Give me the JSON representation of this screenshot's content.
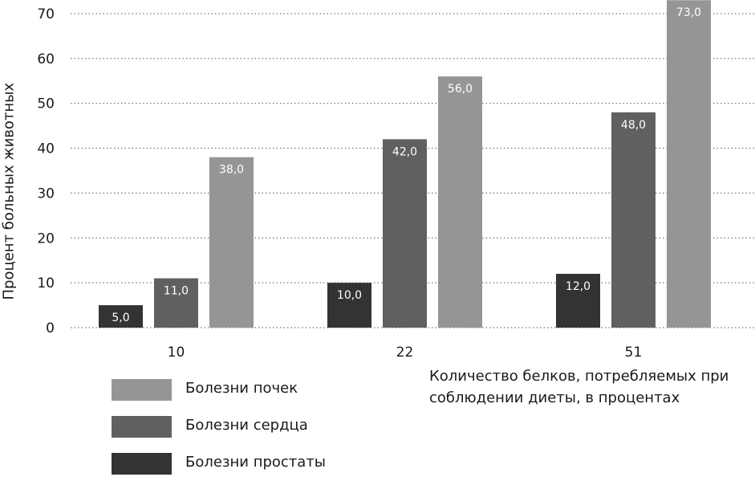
{
  "chart_data": {
    "type": "bar",
    "categories": [
      "10",
      "22",
      "51"
    ],
    "ylabel": "Процент больных животных",
    "xlabel_lines": [
      "Количество белков, потребляемых при",
      "соблюдении диеты, в процентах"
    ],
    "ylim": [
      0,
      70
    ],
    "yticks": [
      0,
      10,
      20,
      30,
      40,
      50,
      60,
      70
    ],
    "grid": "dotted horizontal",
    "series": [
      {
        "name": "Болезни простаты",
        "color": "#333333",
        "values": [
          5.0,
          10.0,
          12.0
        ],
        "labels": [
          "5,0",
          "10,0",
          "12,0"
        ]
      },
      {
        "name": "Болезни сердца",
        "color": "#606060",
        "values": [
          11.0,
          42.0,
          48.0
        ],
        "labels": [
          "11,0",
          "42,0",
          "48,0"
        ]
      },
      {
        "name": "Болезни почек",
        "color": "#959595",
        "values": [
          38.0,
          56.0,
          73.0
        ],
        "labels": [
          "38,0",
          "56,0",
          "73,0"
        ]
      }
    ],
    "legend": [
      "Болезни почек",
      "Болезни сердца",
      "Болезни простаты"
    ],
    "legend_colors": [
      "#959595",
      "#606060",
      "#333333"
    ]
  }
}
